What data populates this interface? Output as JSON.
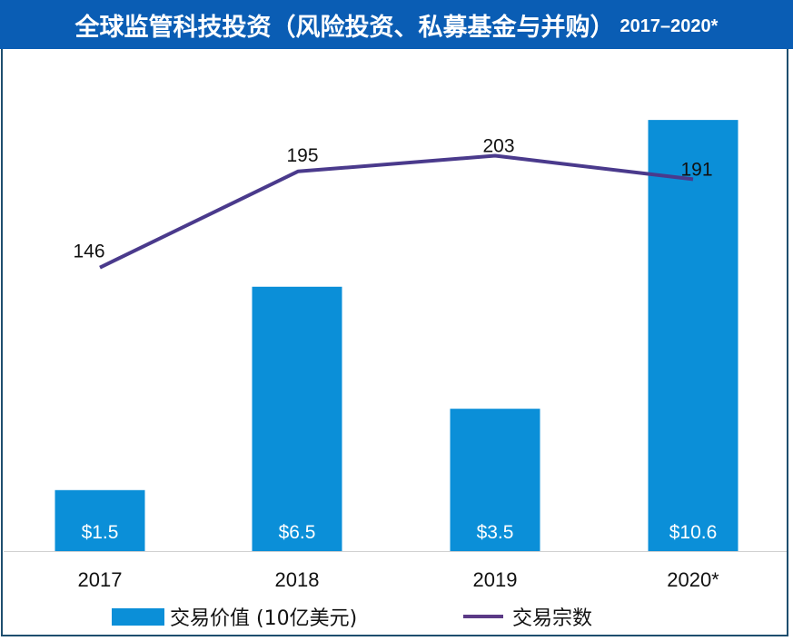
{
  "title": {
    "main": "全球监管科技投资（风险投资、私募基金与并购）",
    "years": "2017–2020*"
  },
  "colors": {
    "header": "#0a5db4",
    "bar": "#0b8fd8",
    "line": "#4a3a8c"
  },
  "chart_data": {
    "type": "bar",
    "title": "全球监管科技投资（风险投资、私募基金与并购）2017–2020*",
    "categories": [
      "2017",
      "2018",
      "2019",
      "2020*"
    ],
    "series": [
      {
        "name": "交易价值 (10亿美元)",
        "type": "bar",
        "values": [
          1.5,
          6.5,
          3.5,
          10.6
        ],
        "labels": [
          "$1.5",
          "$6.5",
          "$3.5",
          "$10.6"
        ]
      },
      {
        "name": "交易宗数",
        "type": "line",
        "values": [
          146,
          195,
          203,
          191
        ],
        "labels": [
          "146",
          "195",
          "203",
          "191"
        ]
      }
    ],
    "xlabel": "",
    "ylabel": "",
    "grid": false,
    "legend": "bottom"
  },
  "legend": {
    "bar_label": "交易价值 (10亿美元)",
    "line_label": "交易宗数"
  }
}
